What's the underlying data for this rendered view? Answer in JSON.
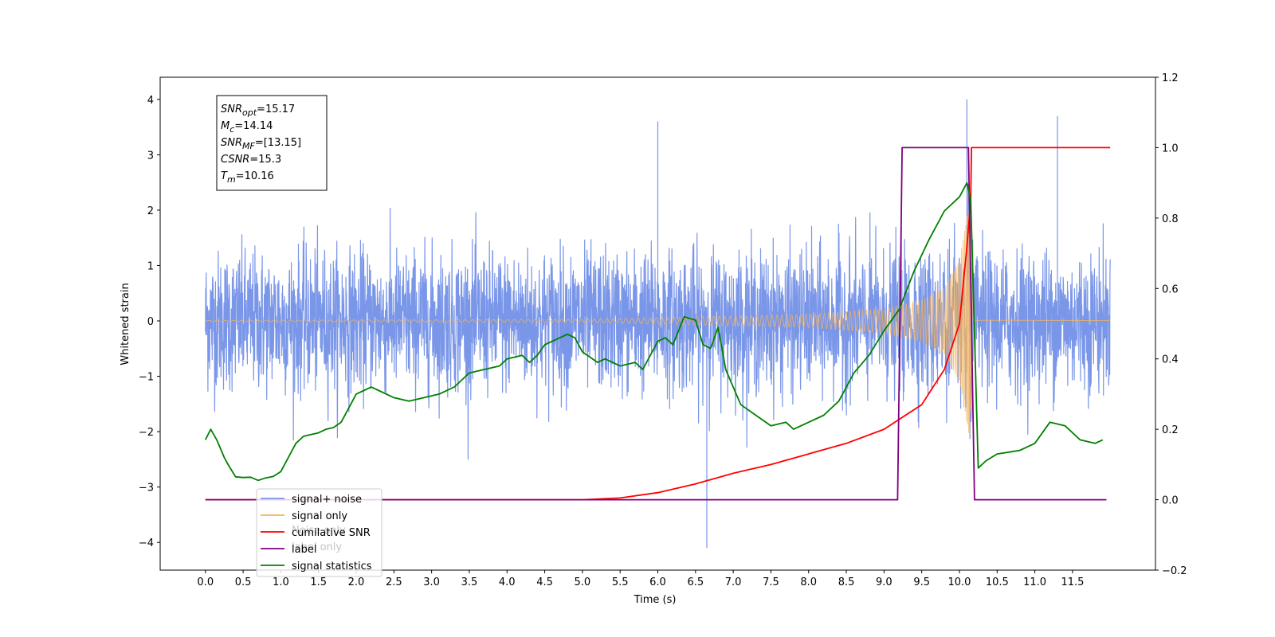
{
  "chart_data": {
    "type": "line",
    "xlabel": "Time (s)",
    "ylabel": "Whitened strain",
    "xlim": [
      -0.6,
      12.6
    ],
    "ylim": [
      -4.5,
      4.4
    ],
    "y2lim": [
      -0.2,
      1.2
    ],
    "x_ticks": [
      "0.0",
      "0.5",
      "1.0",
      "1.5",
      "2.0",
      "2.5",
      "3.0",
      "3.5",
      "4.0",
      "4.5",
      "5.0",
      "5.5",
      "6.0",
      "6.5",
      "7.0",
      "7.5",
      "8.0",
      "8.5",
      "9.0",
      "9.5",
      "10.0",
      "10.5",
      "11.0",
      "11.5"
    ],
    "y_ticks": [
      "4",
      "3",
      "2",
      "1",
      "0",
      "−1",
      "−2",
      "−3",
      "−4"
    ],
    "y2_ticks": [
      "1.2",
      "1.0",
      "0.8",
      "0.6",
      "0.4",
      "0.2",
      "0.0",
      "−0.2"
    ],
    "grid": false,
    "legend_position": "lower-left",
    "info_box": {
      "lines": [
        {
          "main": "SNR",
          "sub": "opt",
          "value": "=15.17"
        },
        {
          "main": "M",
          "sub": "c",
          "value": "=14.14"
        },
        {
          "main": "SNR",
          "sub": "MF",
          "value": "=[13.15]"
        },
        {
          "main": "CSNR",
          "sub": "",
          "value": "=15.3"
        },
        {
          "main": "T",
          "sub": "m",
          "value": "=10.16"
        }
      ]
    },
    "series": [
      {
        "name": "signal+ noise",
        "color": "#7a96e8",
        "axis": "left",
        "description": "whitened noise plus chirp, amplitude about ±1.5 with spikes to ±4",
        "x_range": [
          0.0,
          12.0
        ],
        "envelope": [
          1.5,
          -1.5
        ],
        "peaks": [
          [
            10.1,
            4.0
          ],
          [
            6.65,
            -4.1
          ],
          [
            11.3,
            3.7
          ],
          [
            6.0,
            3.6
          ]
        ]
      },
      {
        "name": "signal only",
        "color": "#f5b35a",
        "axis": "left",
        "description": "chirp whose envelope grows toward merger",
        "x_range": [
          0.0,
          12.0
        ],
        "merger_time": 10.16,
        "envelope": [
          [
            0.0,
            0.01
          ],
          [
            5.0,
            0.03
          ],
          [
            8.0,
            0.12
          ],
          [
            9.0,
            0.22
          ],
          [
            9.5,
            0.38
          ],
          [
            9.8,
            0.6
          ],
          [
            10.0,
            1.1
          ],
          [
            10.1,
            1.9
          ],
          [
            10.15,
            2.2
          ],
          [
            10.18,
            0.02
          ],
          [
            12.0,
            0.01
          ]
        ]
      },
      {
        "name": "cumilative SNR",
        "color": "#ff0000",
        "axis": "right",
        "points": [
          [
            0.0,
            0.0
          ],
          [
            4.5,
            0.0
          ],
          [
            5.0,
            0.0
          ],
          [
            5.5,
            0.005
          ],
          [
            6.0,
            0.02
          ],
          [
            6.5,
            0.045
          ],
          [
            7.0,
            0.075
          ],
          [
            7.5,
            0.1
          ],
          [
            8.0,
            0.13
          ],
          [
            8.5,
            0.16
          ],
          [
            9.0,
            0.2
          ],
          [
            9.5,
            0.27
          ],
          [
            9.8,
            0.37
          ],
          [
            10.0,
            0.5
          ],
          [
            10.1,
            0.72
          ],
          [
            10.15,
            0.85
          ],
          [
            10.16,
            1.0
          ],
          [
            12.0,
            1.0
          ]
        ]
      },
      {
        "name": "label",
        "color": "#800080",
        "axis": "right",
        "points": [
          [
            0.0,
            0.0
          ],
          [
            9.18,
            0.0
          ],
          [
            9.24,
            1.0
          ],
          [
            10.12,
            1.0
          ],
          [
            10.2,
            0.0
          ],
          [
            11.95,
            0.0
          ]
        ]
      },
      {
        "name": "signal statistics",
        "color": "#008000",
        "axis": "right",
        "points": [
          [
            0.0,
            0.17
          ],
          [
            0.07,
            0.2
          ],
          [
            0.15,
            0.17
          ],
          [
            0.25,
            0.12
          ],
          [
            0.3,
            0.1
          ],
          [
            0.4,
            0.065
          ],
          [
            0.5,
            0.063
          ],
          [
            0.6,
            0.064
          ],
          [
            0.7,
            0.055
          ],
          [
            0.8,
            0.062
          ],
          [
            0.9,
            0.066
          ],
          [
            1.0,
            0.08
          ],
          [
            1.1,
            0.12
          ],
          [
            1.2,
            0.16
          ],
          [
            1.3,
            0.18
          ],
          [
            1.4,
            0.185
          ],
          [
            1.5,
            0.19
          ],
          [
            1.6,
            0.2
          ],
          [
            1.7,
            0.205
          ],
          [
            1.8,
            0.22
          ],
          [
            1.9,
            0.26
          ],
          [
            2.0,
            0.3
          ],
          [
            2.1,
            0.31
          ],
          [
            2.2,
            0.32
          ],
          [
            2.3,
            0.31
          ],
          [
            2.5,
            0.29
          ],
          [
            2.7,
            0.28
          ],
          [
            2.9,
            0.29
          ],
          [
            3.1,
            0.3
          ],
          [
            3.3,
            0.32
          ],
          [
            3.5,
            0.36
          ],
          [
            3.7,
            0.37
          ],
          [
            3.9,
            0.38
          ],
          [
            4.0,
            0.4
          ],
          [
            4.2,
            0.41
          ],
          [
            4.3,
            0.39
          ],
          [
            4.4,
            0.41
          ],
          [
            4.5,
            0.44
          ],
          [
            4.7,
            0.46
          ],
          [
            4.8,
            0.47
          ],
          [
            4.9,
            0.46
          ],
          [
            5.0,
            0.42
          ],
          [
            5.2,
            0.39
          ],
          [
            5.3,
            0.4
          ],
          [
            5.5,
            0.38
          ],
          [
            5.7,
            0.39
          ],
          [
            5.8,
            0.37
          ],
          [
            6.0,
            0.45
          ],
          [
            6.1,
            0.46
          ],
          [
            6.2,
            0.44
          ],
          [
            6.35,
            0.52
          ],
          [
            6.5,
            0.51
          ],
          [
            6.6,
            0.44
          ],
          [
            6.7,
            0.43
          ],
          [
            6.8,
            0.49
          ],
          [
            6.9,
            0.37
          ],
          [
            7.0,
            0.32
          ],
          [
            7.1,
            0.27
          ],
          [
            7.3,
            0.24
          ],
          [
            7.5,
            0.21
          ],
          [
            7.7,
            0.22
          ],
          [
            7.8,
            0.2
          ],
          [
            8.0,
            0.22
          ],
          [
            8.2,
            0.24
          ],
          [
            8.4,
            0.28
          ],
          [
            8.5,
            0.32
          ],
          [
            8.6,
            0.36
          ],
          [
            8.8,
            0.41
          ],
          [
            9.0,
            0.48
          ],
          [
            9.2,
            0.54
          ],
          [
            9.4,
            0.65
          ],
          [
            9.6,
            0.74
          ],
          [
            9.8,
            0.82
          ],
          [
            10.0,
            0.86
          ],
          [
            10.1,
            0.9
          ],
          [
            10.15,
            0.85
          ],
          [
            10.25,
            0.09
          ],
          [
            10.35,
            0.11
          ],
          [
            10.5,
            0.13
          ],
          [
            10.8,
            0.14
          ],
          [
            11.0,
            0.16
          ],
          [
            11.2,
            0.22
          ],
          [
            11.4,
            0.21
          ],
          [
            11.6,
            0.17
          ],
          [
            11.8,
            0.16
          ],
          [
            11.9,
            0.17
          ]
        ]
      }
    ],
    "legend": [
      {
        "label": "signal+ noise",
        "color": "#7a96e8"
      },
      {
        "label": "signal only",
        "color": "#f5b35a"
      },
      {
        "label": "cumilative SNR",
        "color": "#ff0000"
      },
      {
        "label": "label",
        "color": "#800080"
      },
      {
        "label": "signal statistics",
        "color": "#008000"
      }
    ],
    "legend_ghost": [
      "Noise only",
      "label only"
    ]
  }
}
